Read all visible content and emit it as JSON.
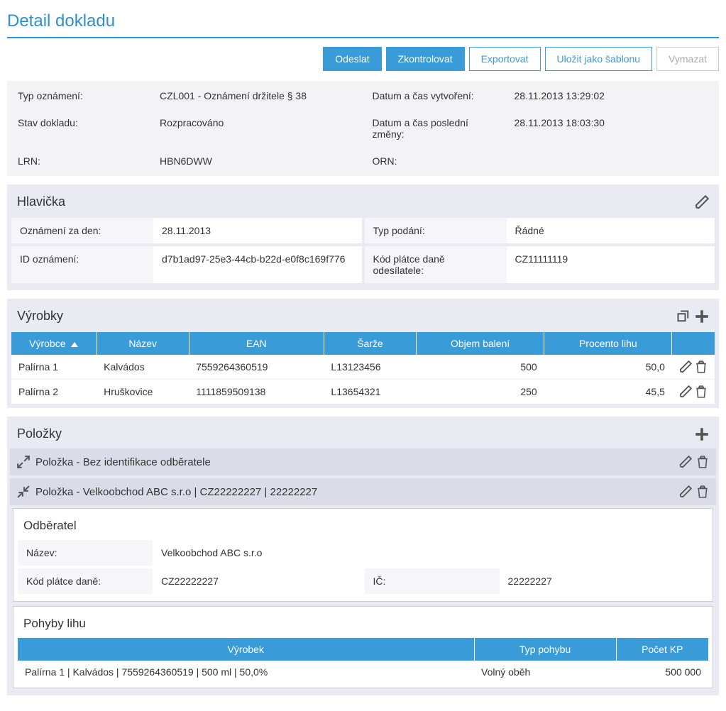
{
  "page_title": "Detail dokladu",
  "toolbar": {
    "send": "Odeslat",
    "check": "Zkontrolovat",
    "export": "Exportovat",
    "save_template": "Uložit jako šablonu",
    "delete": "Vymazat"
  },
  "summary": {
    "type_label": "Typ oznámení:",
    "type_value": "CZL001 - Oznámení držitele § 38",
    "created_label": "Datum a čas vytvoření:",
    "created_value": "28.11.2013 13:29:02",
    "status_label": "Stav dokladu:",
    "status_value": "Rozpracováno",
    "modified_label": "Datum a čas poslední změny:",
    "modified_value": "28.11.2013 18:03:30",
    "lrn_label": "LRN:",
    "lrn_value": "HBN6DWW",
    "orn_label": "ORN:",
    "orn_value": ""
  },
  "header_panel": {
    "title": "Hlavička",
    "date_label": "Oznámení za den:",
    "date_value": "28.11.2013",
    "kind_label": "Typ podání:",
    "kind_value": "Řádné",
    "id_label": "ID oznámení:",
    "id_value": "d7b1ad97-25e3-44cb-b22d-e0f8c169f776",
    "taxcode_label": "Kód plátce daně odesílatele:",
    "taxcode_value": "CZ11111119"
  },
  "products": {
    "title": "Výrobky",
    "columns": {
      "producer": "Výrobce",
      "name": "Název",
      "ean": "EAN",
      "batch": "Šarže",
      "volume": "Objem balení",
      "percent": "Procento lihu"
    },
    "rows": [
      {
        "producer": "Palírna 1",
        "name": "Kalvádos",
        "ean": "7559264360519",
        "batch": "L13123456",
        "volume": "500",
        "percent": "50,0"
      },
      {
        "producer": "Palírna 2",
        "name": "Hruškovice",
        "ean": "1111859509138",
        "batch": "L13654321",
        "volume": "250",
        "percent": "45,5"
      }
    ]
  },
  "items": {
    "title": "Položky",
    "item1_title": "Položka - Bez identifikace odběratele",
    "item2_title": "Položka - Velkoobchod ABC s.r.o | CZ22222227 | 22222227",
    "customer": {
      "title": "Odběratel",
      "name_label": "Název:",
      "name_value": "Velkoobchod ABC s.r.o",
      "taxcode_label": "Kód plátce daně:",
      "taxcode_value": "CZ22222227",
      "ico_label": "IČ:",
      "ico_value": "22222227"
    },
    "movements": {
      "title": "Pohyby lihu",
      "columns": {
        "product": "Výrobek",
        "type": "Typ pohybu",
        "count": "Počet KP"
      },
      "rows": [
        {
          "product": "Palírna 1 | Kalvádos | 7559264360519 | 500 ml | 50,0%",
          "type": "Volný oběh",
          "count": "500 000"
        }
      ]
    }
  },
  "colors": {
    "accent": "#3a9bd9",
    "panel_bg": "#eaeaf3",
    "info_bg": "#f3f3f6",
    "item_bar": "#dcdce8"
  }
}
